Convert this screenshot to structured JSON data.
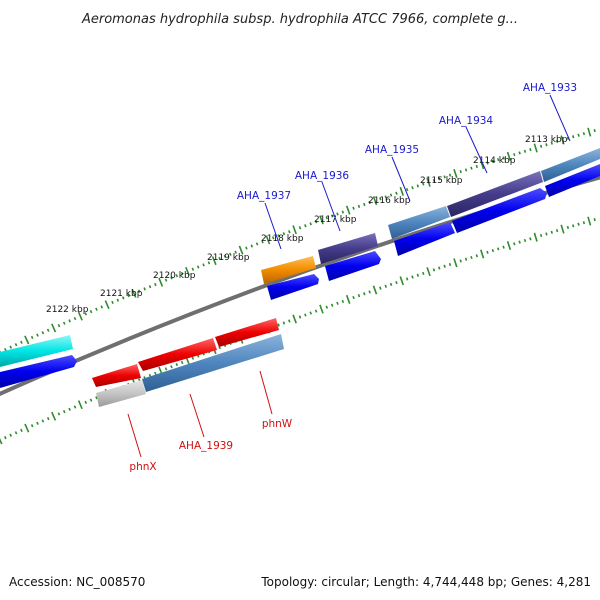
{
  "title": "Aeromonas hydrophila subsp. hydrophila ATCC 7966, complete g...",
  "footer": {
    "accession": "Accession: NC_008570",
    "summary": "Topology: circular; Length: 4,744,448 bp; Genes: 4,281"
  },
  "scale_labels": [
    "2113 kbp",
    "2114 kbp",
    "2115 kbp",
    "2116 kbp",
    "2117 kbp",
    "2118 kbp",
    "2119 kbp",
    "2120 kbp",
    "2121 kbp",
    "2122 kbp"
  ],
  "gene_labels_top": [
    "AHA_1933",
    "AHA_1934",
    "AHA_1935",
    "AHA_1936",
    "AHA_1937"
  ],
  "gene_labels_bottom": [
    "phnX",
    "AHA_1939",
    "phnW"
  ],
  "colors": {
    "backbone": "#7a7a7a",
    "ticks": "#2e8b2e",
    "cds_blue": "#0000ee",
    "steel_blue": "#4f86bf",
    "dark_slate": "#453d8a",
    "orange": "#f28c00",
    "cyan": "#00e5e5",
    "red": "#ee0000",
    "gray": "#c4c4c4",
    "label_blue": "#1a1acc",
    "label_red": "#d01010"
  }
}
